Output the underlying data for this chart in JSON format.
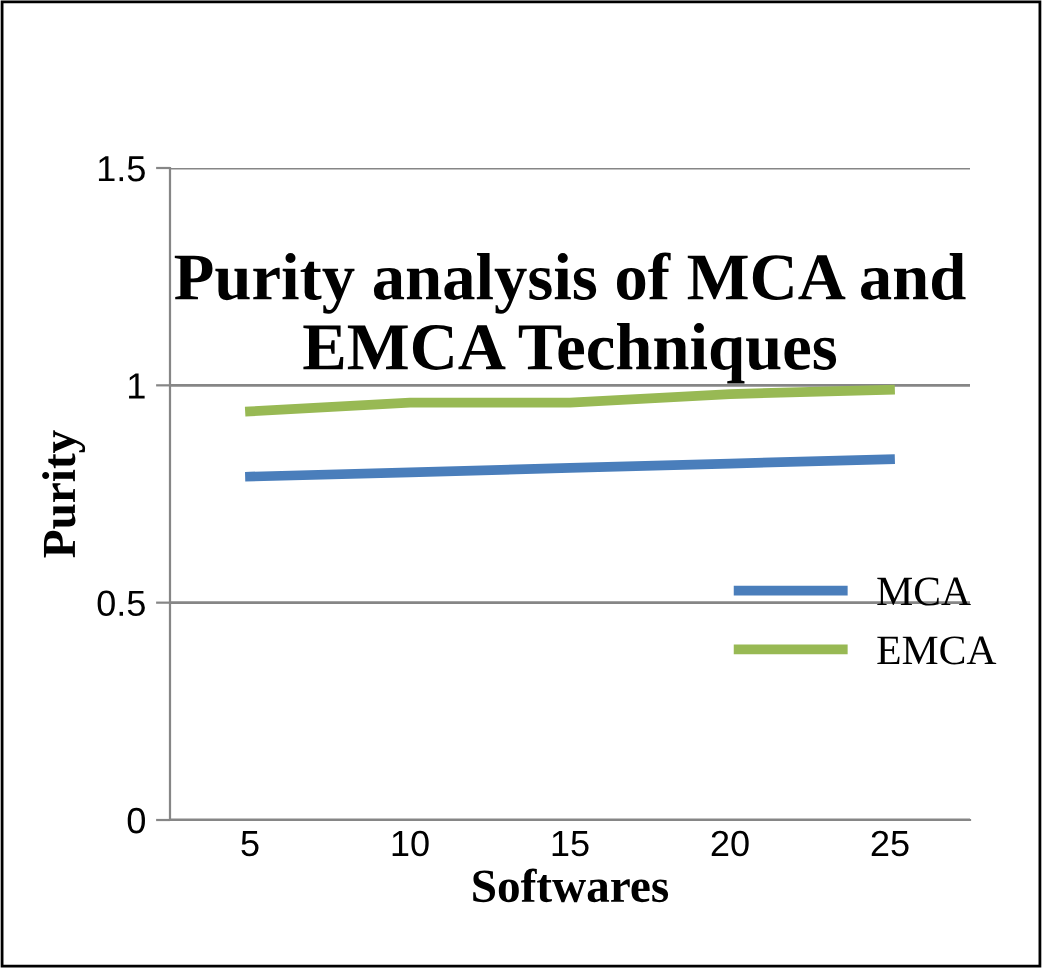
{
  "chart_data": {
    "type": "line",
    "title": "Purity analysis of MCA and EMCA Techniques",
    "xlabel": "Softwares",
    "ylabel": "Purity",
    "categories": [
      "5",
      "10",
      "15",
      "20",
      "25"
    ],
    "series": [
      {
        "name": "MCA",
        "color": "#4a7ebb",
        "values": [
          0.79,
          0.8,
          0.81,
          0.82,
          0.83
        ]
      },
      {
        "name": "EMCA",
        "color": "#98b954",
        "values": [
          0.94,
          0.96,
          0.96,
          0.98,
          0.99
        ]
      }
    ],
    "ylim": [
      0,
      1.5
    ],
    "yticks": [
      0,
      0.5,
      1,
      1.5
    ],
    "grid": "y",
    "legend": "right",
    "marker": "none",
    "line_style": "solid"
  }
}
